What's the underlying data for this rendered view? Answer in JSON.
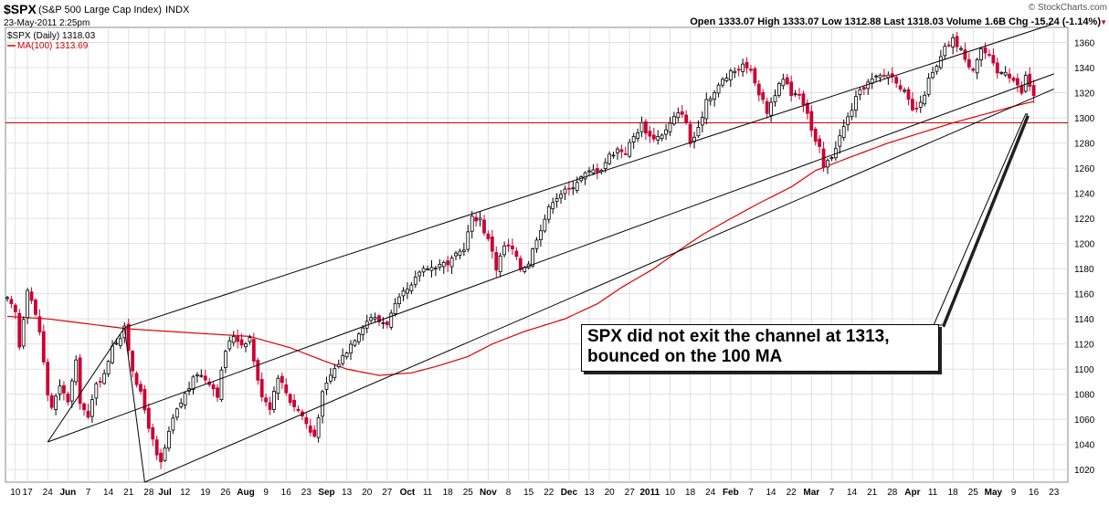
{
  "header": {
    "symbol": "$SPX",
    "name": "(S&P 500 Large Cap Index)",
    "exchange": "INDX",
    "date": "23-May-2011 2:25pm",
    "watermark": "© StockCharts.com",
    "stats": "Open 1333.07   High 1333.07   Low 1312.88   Last 1318.03   Volume 1.6B   Chg -15.24 (-1.14%)",
    "legend_price": "$SPX (Daily) 1318.03",
    "legend_ma": "MA(100) 1313.69"
  },
  "annotation": {
    "line1": "SPX did not exit the channel at 1313,",
    "line2": "bounced on the 100 MA"
  },
  "colors": {
    "up": "#000000",
    "down": "#cc0033",
    "ma": "#dd0000",
    "grid": "#e0e0e0",
    "hline": "#cc0000",
    "trend": "#000000"
  },
  "chart_data": {
    "type": "candlestick",
    "title": "$SPX (S&P 500 Large Cap Index) INDX",
    "ylim": [
      1010,
      1372
    ],
    "y_ticks": [
      1020,
      1040,
      1060,
      1080,
      1100,
      1120,
      1140,
      1160,
      1180,
      1200,
      1220,
      1240,
      1260,
      1280,
      1300,
      1320,
      1340,
      1360
    ],
    "grid": true,
    "x_labels": [
      {
        "t": 2,
        "text": "10"
      },
      {
        "t": 5,
        "text": "17"
      },
      {
        "t": 10,
        "text": "24"
      },
      {
        "t": 15,
        "text": "Jun"
      },
      {
        "t": 20,
        "text": "7"
      },
      {
        "t": 25,
        "text": "14"
      },
      {
        "t": 30,
        "text": "21"
      },
      {
        "t": 35,
        "text": "28"
      },
      {
        "t": 39,
        "text": "Jul"
      },
      {
        "t": 44,
        "text": "12"
      },
      {
        "t": 49,
        "text": "19"
      },
      {
        "t": 54,
        "text": "26"
      },
      {
        "t": 59,
        "text": "Aug"
      },
      {
        "t": 64,
        "text": "9"
      },
      {
        "t": 69,
        "text": "16"
      },
      {
        "t": 74,
        "text": "23"
      },
      {
        "t": 79,
        "text": "Sep"
      },
      {
        "t": 84,
        "text": "13"
      },
      {
        "t": 89,
        "text": "20"
      },
      {
        "t": 94,
        "text": "27"
      },
      {
        "t": 99,
        "text": "Oct"
      },
      {
        "t": 104,
        "text": "11"
      },
      {
        "t": 109,
        "text": "18"
      },
      {
        "t": 114,
        "text": "25"
      },
      {
        "t": 119,
        "text": "Nov"
      },
      {
        "t": 124,
        "text": "8"
      },
      {
        "t": 129,
        "text": "15"
      },
      {
        "t": 134,
        "text": "22"
      },
      {
        "t": 139,
        "text": "Dec"
      },
      {
        "t": 144,
        "text": "13"
      },
      {
        "t": 149,
        "text": "20"
      },
      {
        "t": 154,
        "text": "27"
      },
      {
        "t": 159,
        "text": "2011"
      },
      {
        "t": 164,
        "text": "10"
      },
      {
        "t": 169,
        "text": "18"
      },
      {
        "t": 174,
        "text": "24"
      },
      {
        "t": 179,
        "text": "Feb"
      },
      {
        "t": 184,
        "text": "7"
      },
      {
        "t": 189,
        "text": "14"
      },
      {
        "t": 194,
        "text": "22"
      },
      {
        "t": 199,
        "text": "Mar"
      },
      {
        "t": 204,
        "text": "7"
      },
      {
        "t": 209,
        "text": "14"
      },
      {
        "t": 214,
        "text": "21"
      },
      {
        "t": 219,
        "text": "28"
      },
      {
        "t": 224,
        "text": "Apr"
      },
      {
        "t": 229,
        "text": "11"
      },
      {
        "t": 234,
        "text": "18"
      },
      {
        "t": 239,
        "text": "25"
      },
      {
        "t": 244,
        "text": "May"
      },
      {
        "t": 249,
        "text": "9"
      },
      {
        "t": 254,
        "text": "16"
      },
      {
        "t": 259,
        "text": "23"
      }
    ],
    "price_anchors": [
      [
        0,
        1155
      ],
      [
        2,
        1145
      ],
      [
        3,
        1118
      ],
      [
        5,
        1165
      ],
      [
        6,
        1155
      ],
      [
        8,
        1130
      ],
      [
        10,
        1080
      ],
      [
        11,
        1070
      ],
      [
        13,
        1085
      ],
      [
        15,
        1075
      ],
      [
        17,
        1105
      ],
      [
        18,
        1075
      ],
      [
        20,
        1060
      ],
      [
        22,
        1090
      ],
      [
        24,
        1095
      ],
      [
        26,
        1120
      ],
      [
        28,
        1125
      ],
      [
        29,
        1132
      ],
      [
        31,
        1100
      ],
      [
        33,
        1080
      ],
      [
        35,
        1055
      ],
      [
        37,
        1030
      ],
      [
        38,
        1025
      ],
      [
        41,
        1060
      ],
      [
        44,
        1080
      ],
      [
        47,
        1097
      ],
      [
        50,
        1090
      ],
      [
        52,
        1080
      ],
      [
        54,
        1115
      ],
      [
        56,
        1127
      ],
      [
        58,
        1120
      ],
      [
        60,
        1125
      ],
      [
        62,
        1090
      ],
      [
        63,
        1080
      ],
      [
        65,
        1070
      ],
      [
        67,
        1095
      ],
      [
        70,
        1075
      ],
      [
        73,
        1063
      ],
      [
        75,
        1050
      ],
      [
        76,
        1047
      ],
      [
        78,
        1080
      ],
      [
        80,
        1095
      ],
      [
        82,
        1105
      ],
      [
        84,
        1115
      ],
      [
        86,
        1125
      ],
      [
        88,
        1135
      ],
      [
        90,
        1142
      ],
      [
        92,
        1138
      ],
      [
        94,
        1137
      ],
      [
        96,
        1150
      ],
      [
        98,
        1160
      ],
      [
        100,
        1165
      ],
      [
        102,
        1178
      ],
      [
        104,
        1182
      ],
      [
        106,
        1180
      ],
      [
        107,
        1185
      ],
      [
        109,
        1182
      ],
      [
        111,
        1190
      ],
      [
        113,
        1197
      ],
      [
        115,
        1220
      ],
      [
        117,
        1220
      ],
      [
        118,
        1210
      ],
      [
        120,
        1195
      ],
      [
        121,
        1180
      ],
      [
        123,
        1198
      ],
      [
        125,
        1195
      ],
      [
        127,
        1180
      ],
      [
        129,
        1185
      ],
      [
        131,
        1205
      ],
      [
        133,
        1220
      ],
      [
        135,
        1235
      ],
      [
        137,
        1240
      ],
      [
        139,
        1243
      ],
      [
        141,
        1250
      ],
      [
        143,
        1255
      ],
      [
        145,
        1258
      ],
      [
        147,
        1260
      ],
      [
        149,
        1270
      ],
      [
        151,
        1275
      ],
      [
        153,
        1273
      ],
      [
        155,
        1285
      ],
      [
        157,
        1295
      ],
      [
        159,
        1285
      ],
      [
        161,
        1285
      ],
      [
        163,
        1290
      ],
      [
        165,
        1300
      ],
      [
        167,
        1305
      ],
      [
        168,
        1295
      ],
      [
        169,
        1280
      ],
      [
        171,
        1290
      ],
      [
        173,
        1315
      ],
      [
        175,
        1320
      ],
      [
        177,
        1330
      ],
      [
        179,
        1335
      ],
      [
        181,
        1340
      ],
      [
        183,
        1342
      ],
      [
        185,
        1330
      ],
      [
        186,
        1320
      ],
      [
        188,
        1305
      ],
      [
        190,
        1320
      ],
      [
        192,
        1330
      ],
      [
        194,
        1320
      ],
      [
        196,
        1320
      ],
      [
        198,
        1305
      ],
      [
        199,
        1290
      ],
      [
        200,
        1280
      ],
      [
        201,
        1275
      ],
      [
        202,
        1260
      ],
      [
        204,
        1270
      ],
      [
        206,
        1285
      ],
      [
        208,
        1300
      ],
      [
        210,
        1315
      ],
      [
        212,
        1325
      ],
      [
        214,
        1330
      ],
      [
        216,
        1333
      ],
      [
        218,
        1335
      ],
      [
        220,
        1330
      ],
      [
        222,
        1320
      ],
      [
        224,
        1305
      ],
      [
        226,
        1310
      ],
      [
        228,
        1330
      ],
      [
        230,
        1340
      ],
      [
        232,
        1355
      ],
      [
        234,
        1362
      ],
      [
        236,
        1355
      ],
      [
        237,
        1345
      ],
      [
        239,
        1340
      ],
      [
        241,
        1355
      ],
      [
        243,
        1348
      ],
      [
        245,
        1335
      ],
      [
        247,
        1338
      ],
      [
        249,
        1330
      ],
      [
        251,
        1320
      ],
      [
        252,
        1333
      ],
      [
        254,
        1318
      ]
    ],
    "ma100_anchors": [
      [
        0,
        1142
      ],
      [
        10,
        1140
      ],
      [
        20,
        1136
      ],
      [
        30,
        1132
      ],
      [
        40,
        1130
      ],
      [
        50,
        1128
      ],
      [
        60,
        1126
      ],
      [
        70,
        1117
      ],
      [
        78,
        1107
      ],
      [
        84,
        1100
      ],
      [
        92,
        1095
      ],
      [
        100,
        1097
      ],
      [
        106,
        1102
      ],
      [
        114,
        1110
      ],
      [
        120,
        1120
      ],
      [
        128,
        1130
      ],
      [
        138,
        1140
      ],
      [
        146,
        1152
      ],
      [
        152,
        1165
      ],
      [
        160,
        1180
      ],
      [
        166,
        1194
      ],
      [
        172,
        1207
      ],
      [
        178,
        1218
      ],
      [
        186,
        1232
      ],
      [
        194,
        1245
      ],
      [
        200,
        1258
      ],
      [
        208,
        1268
      ],
      [
        218,
        1280
      ],
      [
        226,
        1288
      ],
      [
        234,
        1296
      ],
      [
        242,
        1303
      ],
      [
        250,
        1310
      ],
      [
        254,
        1313
      ]
    ],
    "horizontal_level": 1296,
    "trendlines": [
      {
        "name": "channel-upper",
        "points": [
          [
            29,
            1133
          ],
          [
            259,
            1375
          ]
        ]
      },
      {
        "name": "channel-middle",
        "points": [
          [
            10,
            1042
          ],
          [
            259,
            1335
          ]
        ]
      },
      {
        "name": "channel-lower",
        "points": [
          [
            34,
            1010
          ],
          [
            259,
            1323
          ]
        ]
      },
      {
        "name": "pivot-connector-left",
        "points": [
          [
            10,
            1042
          ],
          [
            29,
            1133
          ]
        ]
      },
      {
        "name": "pivot-connector-right",
        "points": [
          [
            29,
            1133
          ],
          [
            34,
            1010
          ]
        ]
      }
    ]
  }
}
